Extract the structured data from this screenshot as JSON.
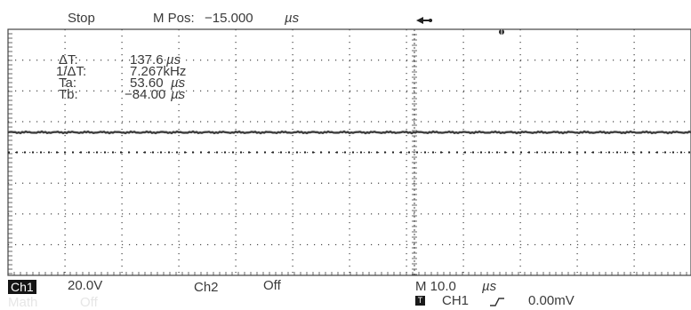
{
  "header": {
    "status": "Stop",
    "mpos_label": "M Pos:",
    "mpos_value": "−15.000",
    "mpos_unit": "µs",
    "trigger_icon": "trigger-position-arrow"
  },
  "cursor_readout": {
    "delta_t_label": "ΔT:",
    "delta_t_value": "137.6",
    "delta_t_unit": "µs",
    "inv_delta_t_label": "1/ΔT:",
    "inv_delta_t_value": "7.267kHz",
    "ta_label": "Ta:",
    "ta_value": "53.60",
    "ta_unit": "µs",
    "tb_label": "Tb:",
    "tb_value": "−84.00",
    "tb_unit": "µs"
  },
  "footer": {
    "ch1_badge": "Ch1",
    "ch1_scale": "20.0V",
    "ch2_label": "Ch2",
    "ch2_state": "Off",
    "math_label": "Math",
    "math_state": "Off",
    "timebase": "M 10.0",
    "timebase_unit": "µs",
    "trigger_badge": "T",
    "trigger_source": "CH1",
    "trigger_slope_icon": "rising-edge",
    "trigger_level": "0.00mV"
  },
  "colors": {
    "grid": "#444444",
    "trace": "#3f3f3f",
    "faint": "#e6e6e6"
  }
}
